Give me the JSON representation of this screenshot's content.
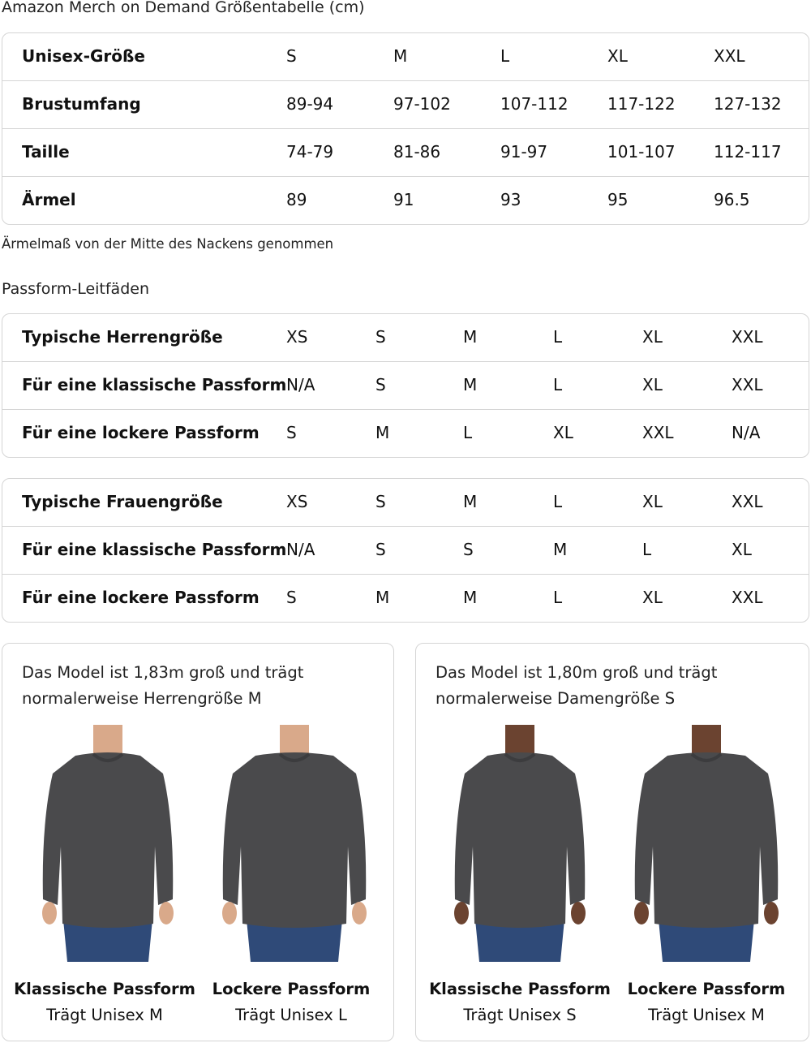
{
  "title": "Amazon Merch on Demand Größentabelle (cm)",
  "size_table": {
    "rows": [
      {
        "label": "Unisex-Größe",
        "values": [
          "S",
          "M",
          "L",
          "XL",
          "XXL"
        ]
      },
      {
        "label": "Brustumfang",
        "values": [
          "89-94",
          "97-102",
          "107-112",
          "117-122",
          "127-132"
        ]
      },
      {
        "label": "Taille",
        "values": [
          "74-79",
          "81-86",
          "91-97",
          "101-107",
          "112-117"
        ]
      },
      {
        "label": "Ärmel",
        "values": [
          "89",
          "91",
          "93",
          "95",
          "96.5"
        ]
      }
    ]
  },
  "note": "Ärmelmaß von der Mitte des Nackens genommen",
  "fit_heading": "Passform-Leitfäden",
  "men_table": {
    "rows": [
      {
        "label": "Typische Herrengröße",
        "values": [
          "XS",
          "S",
          "M",
          "L",
          "XL",
          "XXL"
        ]
      },
      {
        "label": "Für eine klassische Passform",
        "values": [
          "N/A",
          "S",
          "M",
          "L",
          "XL",
          "XXL"
        ]
      },
      {
        "label": "Für eine lockere Passform",
        "values": [
          "S",
          "M",
          "L",
          "XL",
          "XXL",
          "N/A"
        ]
      }
    ]
  },
  "women_table": {
    "rows": [
      {
        "label": "Typische Frauengröße",
        "values": [
          "XS",
          "S",
          "M",
          "L",
          "XL",
          "XXL"
        ]
      },
      {
        "label": "Für eine klassische Passform",
        "values": [
          "N/A",
          "S",
          "S",
          "M",
          "L",
          "XL"
        ]
      },
      {
        "label": "Für eine lockere Passform",
        "values": [
          "S",
          "M",
          "M",
          "L",
          "XL",
          "XXL"
        ]
      }
    ]
  },
  "panels": [
    {
      "text1": "Das Model ist 1,83m groß und trägt",
      "text2": "normalerweise Herrengröße M",
      "figures": [
        {
          "title": "Klassische Passform",
          "sub": "Trägt Unisex M"
        },
        {
          "title": "Lockere Passform",
          "sub": "Trägt Unisex L"
        }
      ]
    },
    {
      "text1": "Das Model ist 1,80m groß und trägt",
      "text2": "normalerweise Damengröße S",
      "figures": [
        {
          "title": "Klassische Passform",
          "sub": "Trägt Unisex S"
        },
        {
          "title": "Lockere Passform",
          "sub": "Trägt Unisex M"
        }
      ]
    }
  ],
  "colors": {
    "sweater": "#4a4a4c",
    "jeans": "#2f4a78",
    "skin_men": "#d9a98a",
    "skin_women": "#6b4330",
    "border": "#d5d5d5"
  }
}
